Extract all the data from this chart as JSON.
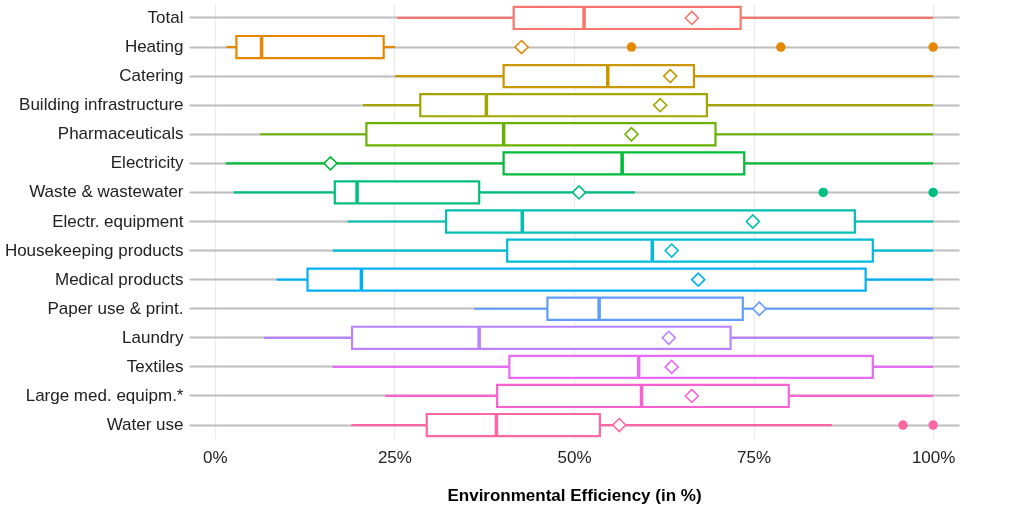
{
  "chart_data": {
    "type": "box",
    "orientation": "horizontal",
    "xlabel": "Environmental Efficiency (in %)",
    "categories": [
      "Total",
      "Heating",
      "Catering",
      "Building infrastructure",
      "Pharmaceuticals",
      "Electricity",
      "Waste & wastewater",
      "Electr. equipment",
      "Housekeeping products",
      "Medical products",
      "Paper use & print.",
      "Laundry",
      "Textiles",
      "Large med. equipm.*",
      "Water use"
    ],
    "colors": [
      "#f8766d",
      "#e58700",
      "#c99800",
      "#a3a500",
      "#6bb100",
      "#00ba38",
      "#00bf7d",
      "#00c0af",
      "#00bcd8",
      "#00b0f6",
      "#619cff",
      "#b983ff",
      "#e76bf3",
      "#fd61d1",
      "#ff67a4"
    ],
    "boxes": [
      {
        "low": 25.4,
        "q1": 41.6,
        "median": 51.4,
        "q3": 73.2,
        "high": 100,
        "mean": 66.4
      },
      {
        "low": 1.6,
        "q1": 3.0,
        "median": 6.5,
        "q3": 23.5,
        "high": 25.1,
        "mean": 42.7,
        "outliers": [
          58.0,
          78.8,
          100
        ]
      },
      {
        "low": 25.1,
        "q1": 40.2,
        "median": 54.7,
        "q3": 66.7,
        "high": 100,
        "mean": 63.4
      },
      {
        "low": 20.6,
        "q1": 28.6,
        "median": 37.8,
        "q3": 68.5,
        "high": 100,
        "mean": 62.0
      },
      {
        "low": 6.3,
        "q1": 21.1,
        "median": 40.2,
        "q3": 69.7,
        "high": 100,
        "mean": 58.0
      },
      {
        "low": 1.5,
        "q1": 40.2,
        "median": 56.7,
        "q3": 73.7,
        "high": 100,
        "mean": 16.1
      },
      {
        "low": 2.6,
        "q1": 16.7,
        "median": 19.8,
        "q3": 36.8,
        "high": 58.5,
        "mean": 50.7,
        "outliers": [
          84.7,
          100
        ]
      },
      {
        "low": 18.5,
        "q1": 32.2,
        "median": 42.8,
        "q3": 89.1,
        "high": 100,
        "mean": 74.9
      },
      {
        "low": 16.4,
        "q1": 40.7,
        "median": 60.9,
        "q3": 91.6,
        "high": 100,
        "mean": 63.6
      },
      {
        "low": 8.6,
        "q1": 12.9,
        "median": 20.4,
        "q3": 90.6,
        "high": 100,
        "mean": 67.3
      },
      {
        "low": 36.1,
        "q1": 46.3,
        "median": 53.5,
        "q3": 73.5,
        "high": 100,
        "mean": 75.8
      },
      {
        "low": 6.8,
        "q1": 19.1,
        "median": 36.8,
        "q3": 71.8,
        "high": 100,
        "mean": 63.2
      },
      {
        "low": 16.4,
        "q1": 41.0,
        "median": 59.0,
        "q3": 91.6,
        "high": 100,
        "mean": 63.6
      },
      {
        "low": 23.7,
        "q1": 39.3,
        "median": 59.4,
        "q3": 79.9,
        "high": 100,
        "mean": 66.4
      },
      {
        "low": 19.0,
        "q1": 29.5,
        "median": 39.2,
        "q3": 53.6,
        "high": 85.9,
        "mean": 56.3,
        "outliers": [
          95.8,
          100
        ]
      }
    ],
    "xlim": [
      -3.6,
      103.6
    ],
    "xticks": [
      {
        "value": 0,
        "label": "0%"
      },
      {
        "value": 25,
        "label": "25%"
      },
      {
        "value": 50,
        "label": "50%"
      },
      {
        "value": 75,
        "label": "75%"
      },
      {
        "value": 100,
        "label": "100%"
      }
    ],
    "grid": true,
    "legend": false
  }
}
